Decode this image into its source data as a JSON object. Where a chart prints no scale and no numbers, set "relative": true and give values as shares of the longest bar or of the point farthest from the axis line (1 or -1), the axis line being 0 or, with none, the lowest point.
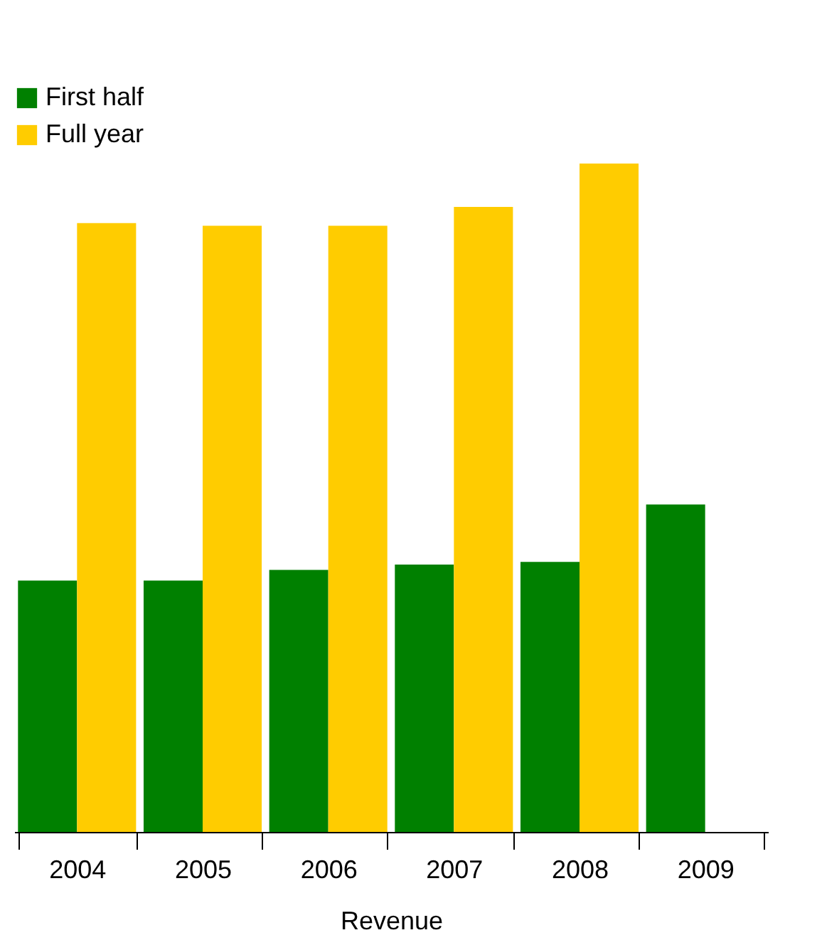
{
  "chart_data": {
    "type": "bar",
    "relative": true,
    "xlabel": "Revenue",
    "categories": [
      "2004",
      "2005",
      "2006",
      "2007",
      "2008",
      "2009"
    ],
    "series": [
      {
        "name": "First half",
        "color": "#008000",
        "values": [
          0.376,
          0.376,
          0.392,
          0.4,
          0.404,
          0.49
        ]
      },
      {
        "name": "Full year",
        "color": "#ffcc00",
        "values": [
          0.911,
          0.907,
          0.907,
          0.935,
          1,
          null
        ]
      }
    ],
    "legend": "top left",
    "grid": false
  }
}
